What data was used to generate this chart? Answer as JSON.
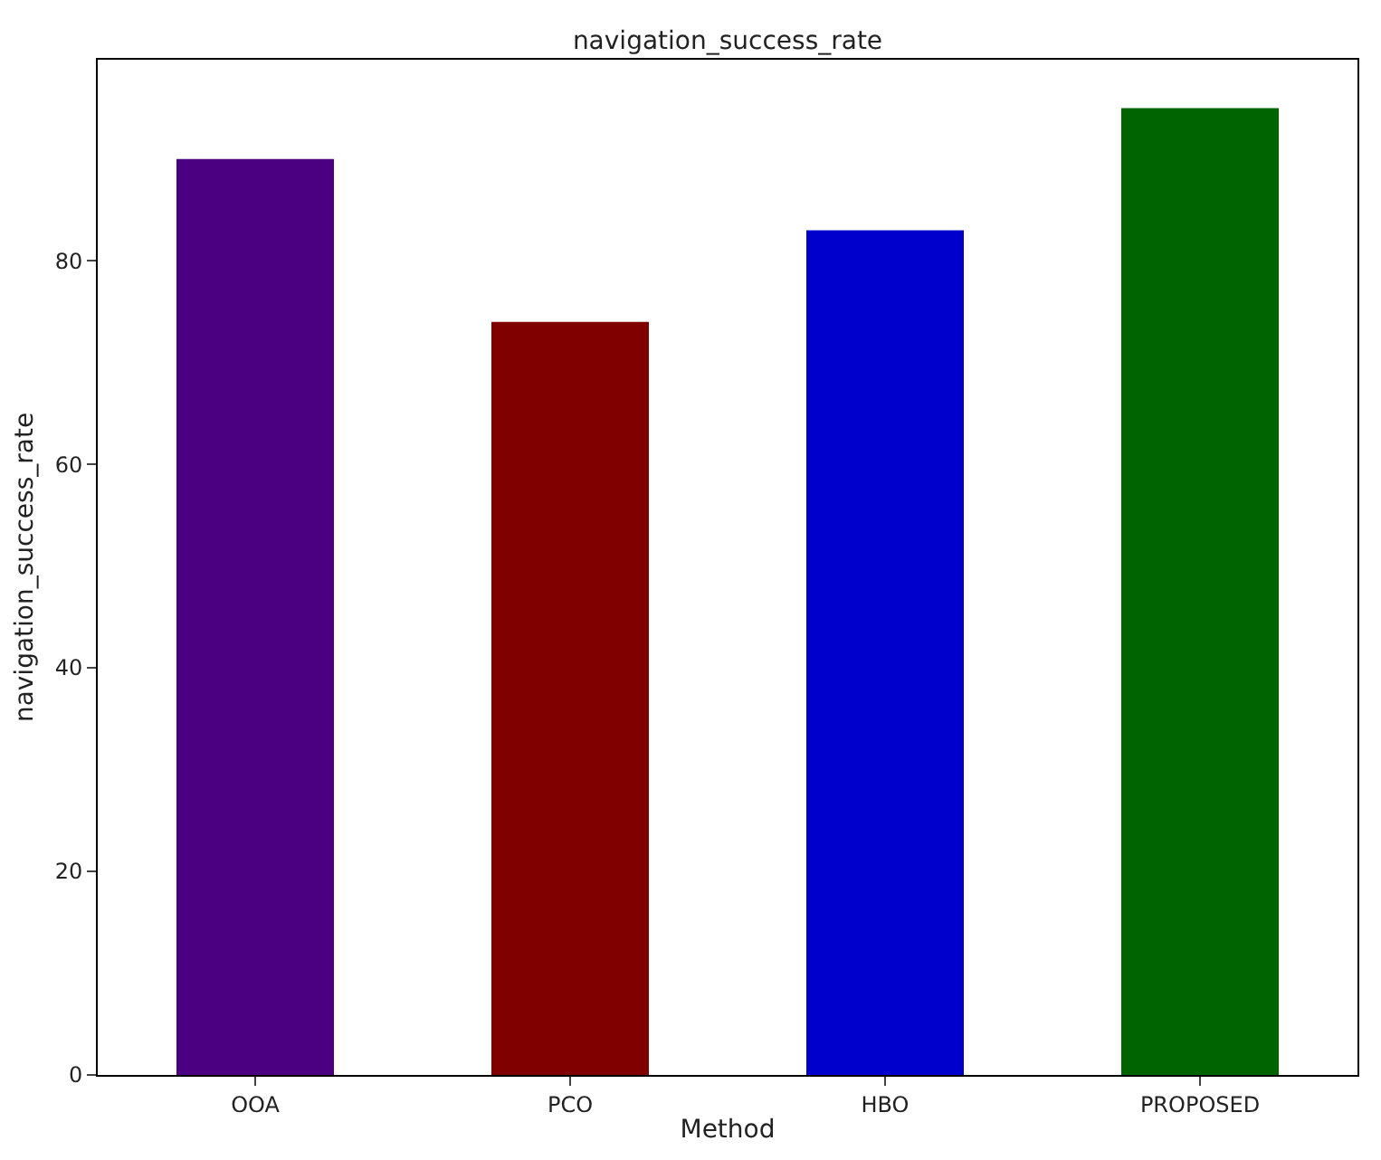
{
  "chart_data": {
    "type": "bar",
    "title": "navigation_success_rate",
    "xlabel": "Method",
    "ylabel": "navigation_success_rate",
    "categories": [
      "OOA",
      "PCO",
      "HBO",
      "PROPOSED"
    ],
    "values": [
      90,
      74,
      83,
      95
    ],
    "colors": [
      "#4b0082",
      "#800000",
      "#0000cd",
      "#006400"
    ],
    "ylim": [
      0,
      99.75
    ],
    "yticks": [
      0,
      20,
      40,
      60,
      80
    ]
  }
}
